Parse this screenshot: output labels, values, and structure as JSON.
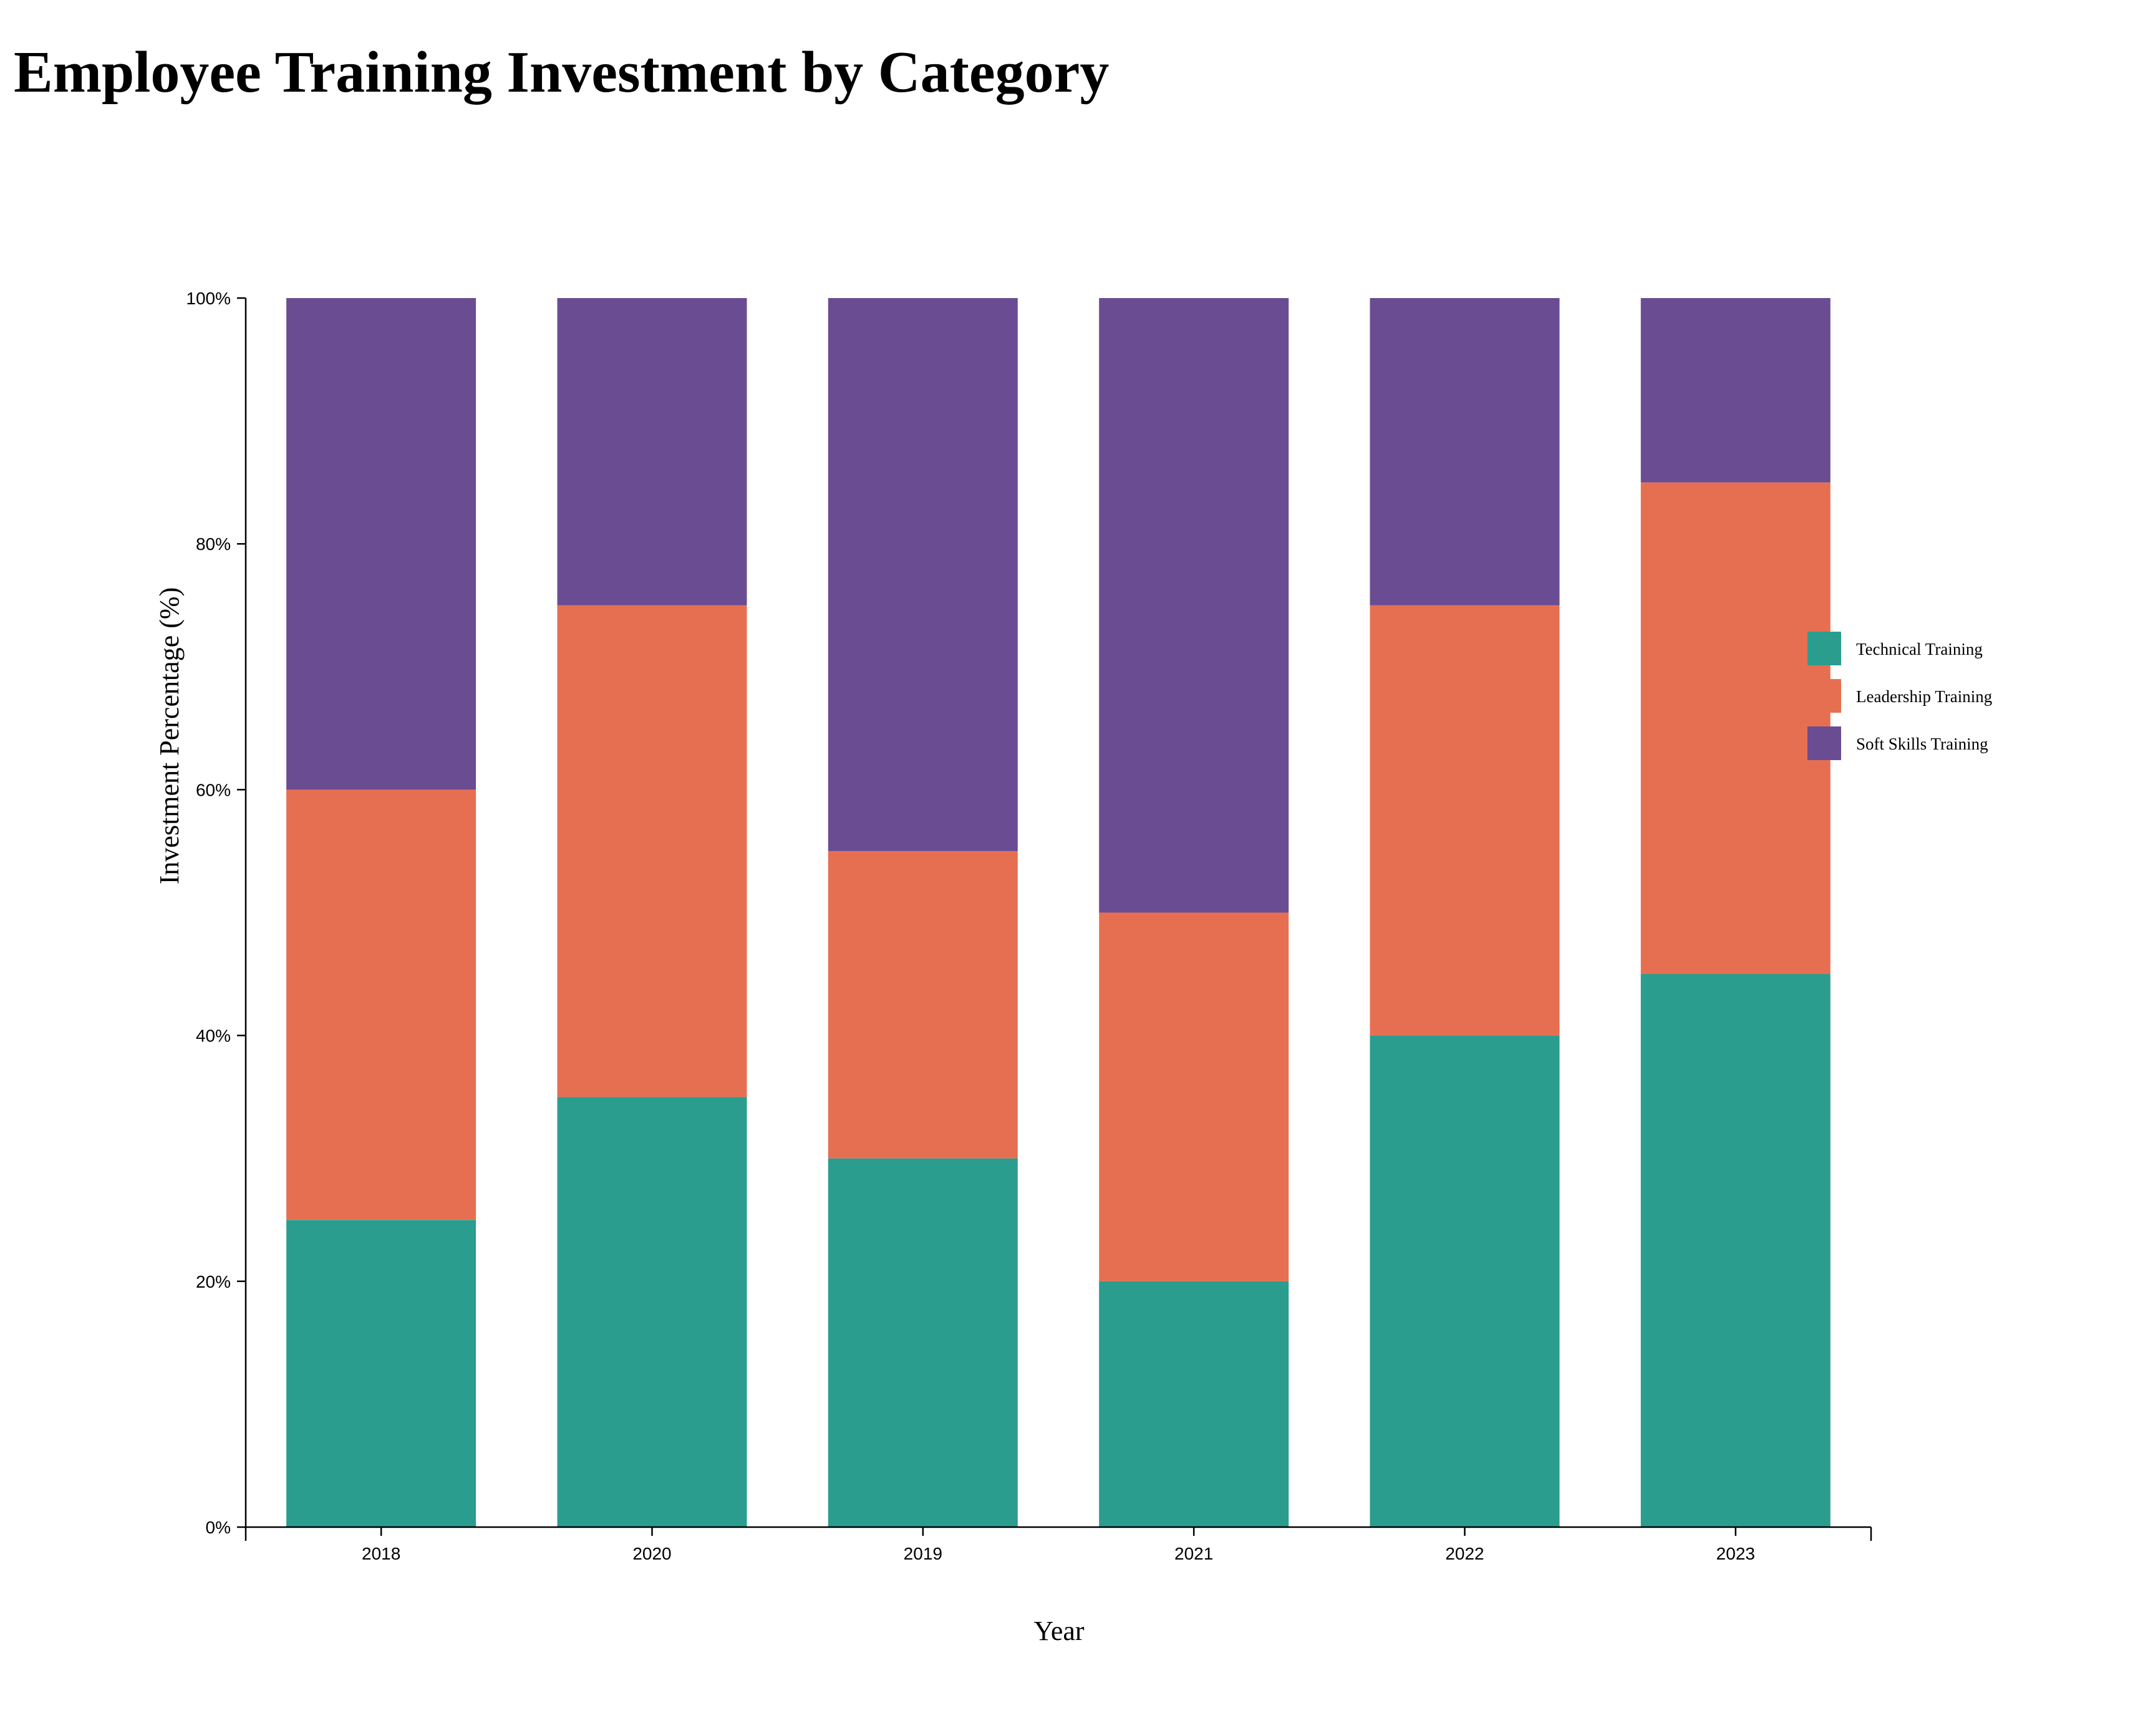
{
  "chart_data": {
    "type": "bar",
    "stacked": true,
    "title": "Employee Training Investment by Category",
    "xlabel": "Year",
    "ylabel": "Investment Percentage (%)",
    "categories": [
      "2018",
      "2020",
      "2019",
      "2021",
      "2022",
      "2023"
    ],
    "series": [
      {
        "name": "Technical Training",
        "color": "#2a9d8f",
        "values": [
          25,
          35,
          30,
          20,
          40,
          45
        ]
      },
      {
        "name": "Leadership Training",
        "color": "#e76f51",
        "values": [
          35,
          40,
          25,
          30,
          35,
          40
        ]
      },
      {
        "name": "Soft Skills Training",
        "color": "#6a4c93",
        "values": [
          40,
          25,
          45,
          50,
          25,
          15
        ]
      }
    ],
    "ylim": [
      0,
      100
    ],
    "yticks": [
      "0%",
      "20%",
      "40%",
      "60%",
      "80%",
      "100%"
    ],
    "grid": false,
    "legend": "right"
  }
}
